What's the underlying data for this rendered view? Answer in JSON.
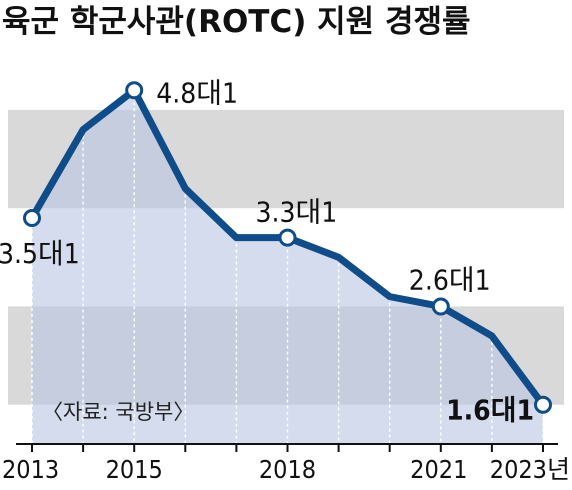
{
  "chart_data": {
    "type": "line",
    "title": "육군 학군사관(ROTC) 지원 경쟁률",
    "x": [
      2013,
      2014,
      2015,
      2016,
      2017,
      2018,
      2019,
      2020,
      2021,
      2022,
      2023
    ],
    "values": [
      3.5,
      4.4,
      4.8,
      3.8,
      3.3,
      3.3,
      3.1,
      2.7,
      2.6,
      2.3,
      1.6
    ],
    "xticks": [
      "2013",
      "2015",
      "2018",
      "2021",
      "2023년"
    ],
    "xtick_years": [
      2013,
      2015,
      2018,
      2021,
      2023
    ],
    "annotations": [
      {
        "year": 2013,
        "text": "3.5대1",
        "bold": false
      },
      {
        "year": 2015,
        "text": "4.8대1",
        "bold": false
      },
      {
        "year": 2018,
        "text": "3.3대1",
        "bold": false
      },
      {
        "year": 2021,
        "text": "2.6대1",
        "bold": false
      },
      {
        "year": 2023,
        "text": "1.6대1",
        "bold": true
      }
    ],
    "source": "〈자료: 국방부〉",
    "ylim": [
      1.2,
      5.2
    ],
    "band_edges": [
      1.6,
      2.6,
      3.6,
      4.6
    ],
    "colors": {
      "line": "#0f4c8a",
      "fill": "#b7c4e2",
      "band": "#d9d9d9",
      "marker_fill": "#ffffff"
    }
  }
}
